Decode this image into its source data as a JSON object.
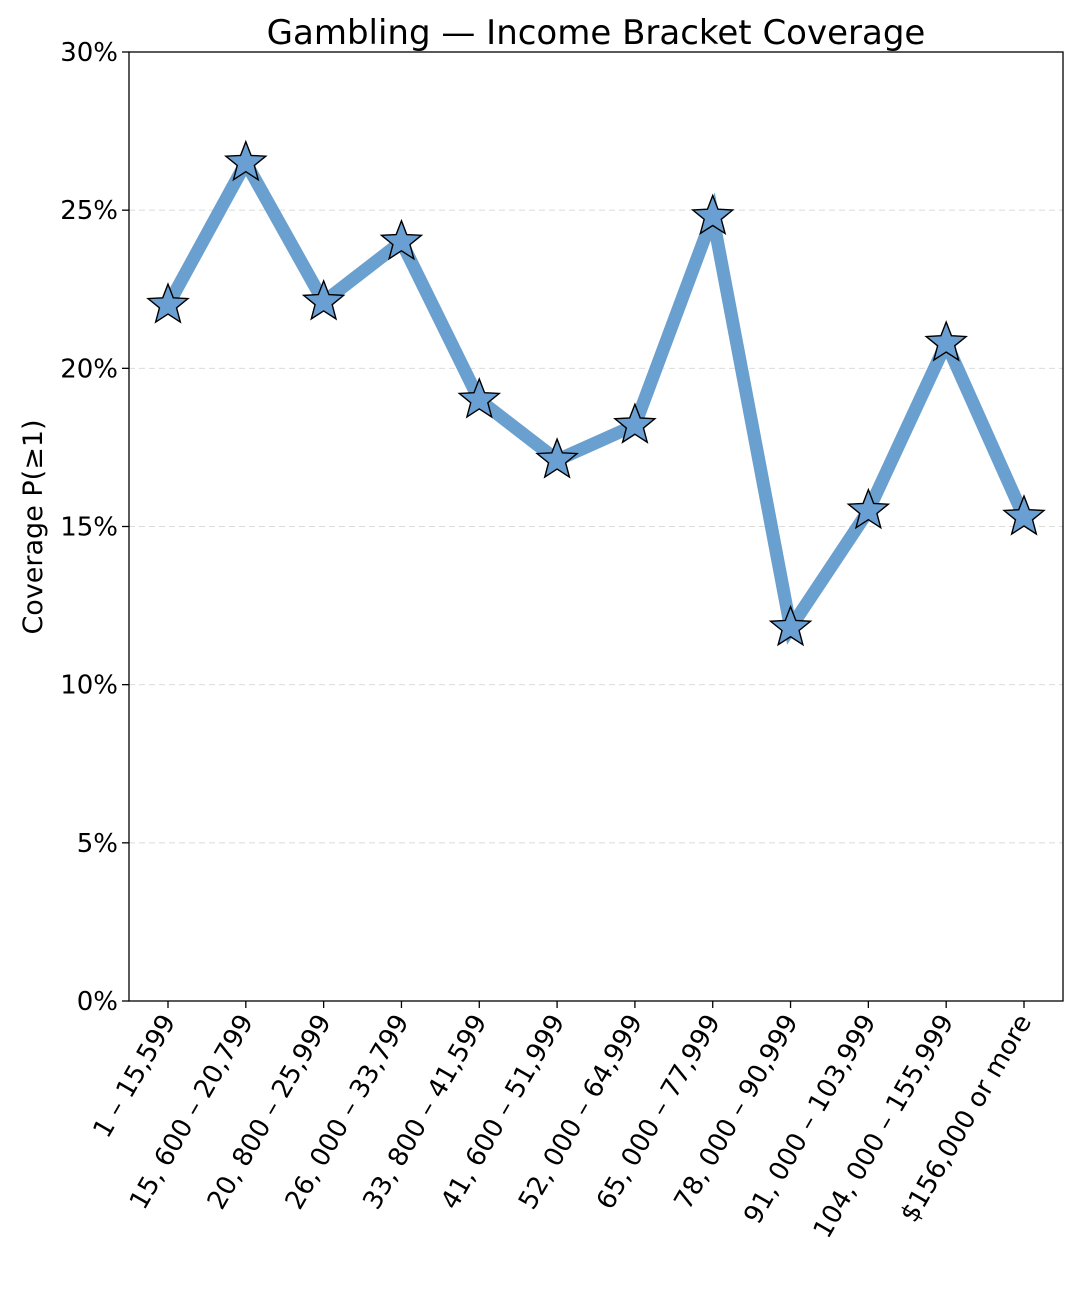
{
  "chart_data": {
    "type": "line",
    "title": "Gambling — Income Bracket Coverage",
    "xlabel": "",
    "ylabel": "Coverage P(≥1)",
    "categories": [
      "1 – 15,599",
      "15, 600 – 20,799",
      "20, 800 – 25,999",
      "26, 000 – 33,799",
      "33, 800 – 41,599",
      "41, 600 – 51,999",
      "52, 000 – 64,999",
      "65, 000 – 77,999",
      "78, 000 – 90,999",
      "91, 000 – 103,999",
      "104, 000 – 155,999",
      "$156,000 or more"
    ],
    "values": [
      0.22,
      0.265,
      0.221,
      0.24,
      0.19,
      0.171,
      0.182,
      0.248,
      0.118,
      0.155,
      0.208,
      0.153
    ],
    "ylim": [
      0,
      0.3
    ],
    "yticks": [
      0,
      0.05,
      0.1,
      0.15,
      0.2,
      0.25,
      0.3
    ],
    "ytick_labels": [
      "0%",
      "5%",
      "10%",
      "15%",
      "20%",
      "25%",
      "30%"
    ],
    "grid": "y-dashed",
    "marker": "star",
    "line_color": "#6aa0cf",
    "marker_color": "#6a9fd3",
    "marker_edge_color": "#000000"
  }
}
